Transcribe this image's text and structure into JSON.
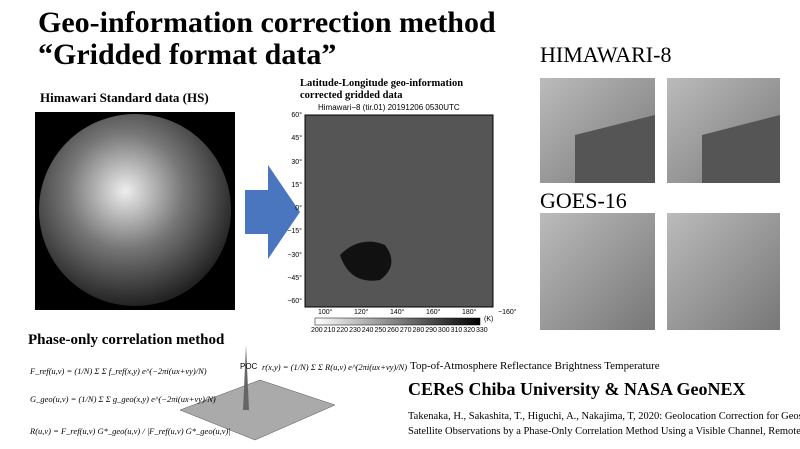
{
  "title": [
    "Geo-information correction method",
    "“Gridded format data”"
  ],
  "left_panel": {
    "heading": "Himawari Standard data (HS)"
  },
  "center_panel": {
    "heading": [
      "Latitude-Longitude geo-information",
      "corrected gridded data"
    ],
    "map_title": "Himawari−8 (tir.01) 20191206 0530UTC",
    "lat_labels": [
      "60°",
      "45°",
      "30°",
      "15°",
      "0°",
      "−15°",
      "−30°",
      "−45°",
      "−60°"
    ],
    "lon_labels": [
      "100°",
      "120°",
      "140°",
      "160°",
      "180°",
      "−160°"
    ],
    "colorbar_labels": [
      "200",
      "210",
      "220",
      "230",
      "240",
      "250",
      "260",
      "270",
      "280",
      "290",
      "300",
      "310",
      "320",
      "330"
    ],
    "colorbar_unit": "(K)"
  },
  "right_panel": {
    "labels": [
      "HIMAWARI-8",
      "GOES-16"
    ]
  },
  "poc": {
    "heading": "Phase-only correlation method",
    "equations": [
      "F_ref(u,v) = (1/N) Σ Σ f_ref(x,y) e^(−2πi(ux+vy)/N)",
      "G_geo(u,v) = (1/N) Σ Σ g_geo(x,y) e^(−2πi(ux+vy)/N)",
      "R(u,v) = F_ref(u,v) G*_geo(u,v) / |F_ref(u,v) G*_geo(u,v)|"
    ],
    "poc_label": "POC",
    "poc_equation": "r(x,y) = (1/N) Σ Σ R(u,v) e^(2πi(ux+vy)/N)"
  },
  "footer": {
    "subtitle": "Top-of-Atmosphere Reflectance Brightness Temperature",
    "affiliation": "CEReS Chiba University & NASA GeoNEX",
    "citation": [
      "Takenaka, H., Sakashita, T., Higuchi, A., Nakajima, T, 2020: Geolocation Correction for Geostationary",
      "Satellite Observations by a Phase-Only Correlation Method Using a Visible Channel, Remote Sens."
    ]
  }
}
